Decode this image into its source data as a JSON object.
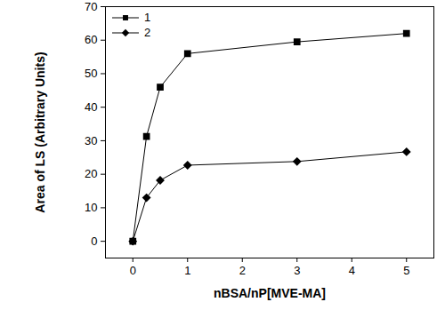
{
  "chart_data": {
    "type": "line",
    "x_label": "nBSA/nP[MVE-MA]",
    "y_label": "Area of LS (Arbitrary Units)",
    "x": [
      0,
      0.25,
      0.5,
      1,
      3,
      5
    ],
    "series": [
      {
        "name": "1",
        "color": "#000000",
        "marker": "square",
        "values": [
          0,
          31.3,
          46,
          56,
          59.5,
          62
        ]
      },
      {
        "name": "2",
        "color": "#000000",
        "marker": "diamond",
        "values": [
          0,
          13,
          18.2,
          22.7,
          23.8,
          26.7
        ]
      }
    ],
    "xlim": [
      -0.5,
      5.5
    ],
    "xticks": [
      0,
      1,
      2,
      3,
      4,
      5
    ],
    "ylim": [
      -5,
      70
    ],
    "yticks": [
      0,
      10,
      20,
      30,
      40,
      50,
      60,
      70
    ],
    "grid": false,
    "legend": "top-left"
  }
}
